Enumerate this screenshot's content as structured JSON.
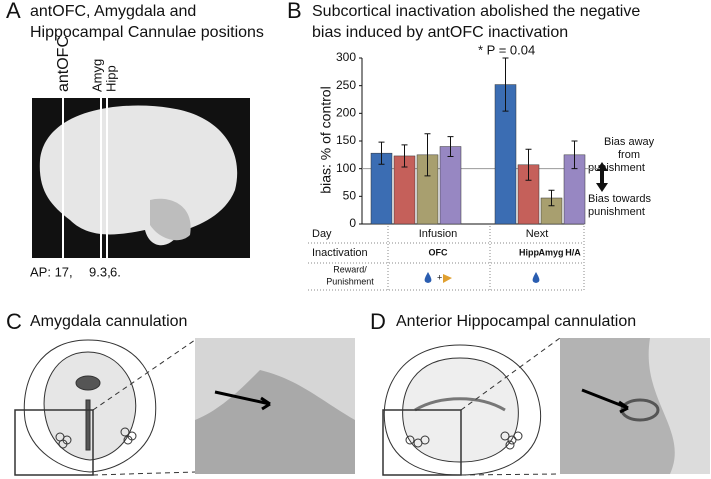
{
  "panels": [
    {
      "letter": "A",
      "title_lines": [
        "antOFC, Amygdala and",
        "Hippocampal Cannulae positions"
      ],
      "site_labels": [
        "antOFC",
        "Amyg",
        "Hipp"
      ],
      "ap_labels": [
        "AP: 17,",
        "9.3,",
        "6."
      ]
    },
    {
      "letter": "B"
    },
    {
      "letter": "C",
      "title": "Amygdala cannulation"
    },
    {
      "letter": "D",
      "title": "Anterior Hippocampal cannulation"
    }
  ],
  "chart_data": {
    "type": "bar",
    "title_lines": [
      "Subcortical inactivation abolished the negative",
      "bias induced by antOFC inactivation"
    ],
    "ylabel": "bias: % of control",
    "categories": [
      "Infusion",
      "Next"
    ],
    "series": [
      {
        "color": "#3b6db3",
        "values": [
          128,
          252
        ],
        "errors": [
          20,
          48
        ]
      },
      {
        "color": "#c5605a",
        "values": [
          123,
          107
        ],
        "errors": [
          20,
          28
        ]
      },
      {
        "color": "#a89f6f",
        "values": [
          125,
          47
        ],
        "errors": [
          38,
          14
        ]
      },
      {
        "color": "#9787c2",
        "values": [
          140,
          125
        ],
        "errors": [
          18,
          25
        ]
      }
    ],
    "ylim": [
      0,
      300
    ],
    "yticks": [
      0,
      50,
      100,
      150,
      200,
      250,
      300
    ],
    "reference_line": 100,
    "annotation": "* P = 0.04",
    "bias_up": [
      "Bias away",
      "from",
      "punishment"
    ],
    "bias_down": [
      "Bias towards",
      "punishment"
    ]
  },
  "table": {
    "day_label": "Day",
    "inactivation_label": "Inactivation",
    "inactivation_cells": [
      "OFC",
      "Hipp",
      "Amyg",
      "H/A"
    ],
    "reward_label_lines": [
      "Reward/",
      "Punishment"
    ]
  }
}
